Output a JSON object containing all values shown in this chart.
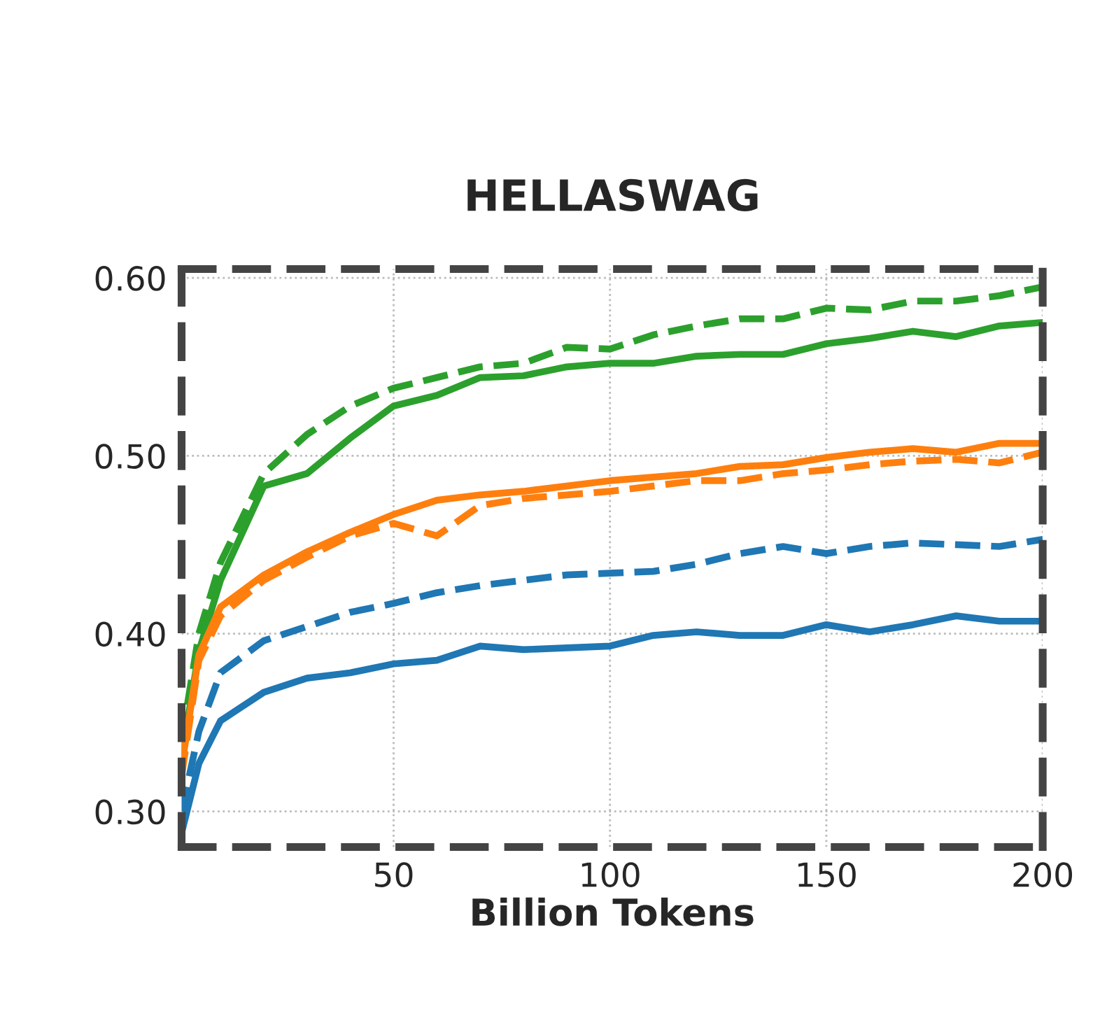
{
  "chart_data": {
    "type": "line",
    "title": "HELLASWAG",
    "xlabel": "Billion Tokens",
    "x": [
      1,
      5,
      10,
      20,
      30,
      40,
      50,
      60,
      70,
      80,
      90,
      100,
      110,
      120,
      130,
      140,
      150,
      160,
      170,
      180,
      190,
      200
    ],
    "series": [
      {
        "color": "#2ca02c",
        "line_style": "solid",
        "values": [
          0.33,
          0.39,
          0.43,
          0.483,
          0.49,
          0.51,
          0.528,
          0.534,
          0.544,
          0.545,
          0.55,
          0.552,
          0.552,
          0.556,
          0.557,
          0.557,
          0.563,
          0.566,
          0.57,
          0.567,
          0.573,
          0.575
        ]
      },
      {
        "color": "#2ca02c",
        "line_style": "dashed",
        "values": [
          0.34,
          0.4,
          0.44,
          0.49,
          0.512,
          0.528,
          0.538,
          0.544,
          0.55,
          0.552,
          0.561,
          0.56,
          0.568,
          0.573,
          0.577,
          0.577,
          0.583,
          0.582,
          0.587,
          0.587,
          0.59,
          0.595
        ]
      },
      {
        "color": "#ff7f0e",
        "line_style": "solid",
        "values": [
          0.325,
          0.388,
          0.415,
          0.433,
          0.446,
          0.457,
          0.467,
          0.475,
          0.478,
          0.48,
          0.483,
          0.486,
          0.488,
          0.49,
          0.494,
          0.495,
          0.499,
          0.502,
          0.504,
          0.502,
          0.507,
          0.507
        ]
      },
      {
        "color": "#ff7f0e",
        "line_style": "dashed",
        "values": [
          0.32,
          0.385,
          0.41,
          0.43,
          0.443,
          0.455,
          0.462,
          0.455,
          0.472,
          0.476,
          0.478,
          0.48,
          0.483,
          0.486,
          0.486,
          0.49,
          0.492,
          0.495,
          0.497,
          0.498,
          0.496,
          0.502
        ]
      },
      {
        "color": "#1f77b4",
        "line_style": "dashed",
        "values": [
          0.3,
          0.345,
          0.378,
          0.396,
          0.404,
          0.412,
          0.417,
          0.423,
          0.427,
          0.43,
          0.433,
          0.434,
          0.435,
          0.439,
          0.445,
          0.449,
          0.445,
          0.449,
          0.451,
          0.45,
          0.449,
          0.453
        ]
      },
      {
        "color": "#1f77b4",
        "line_style": "solid",
        "values": [
          0.288,
          0.327,
          0.351,
          0.367,
          0.375,
          0.378,
          0.383,
          0.385,
          0.393,
          0.391,
          0.392,
          0.393,
          0.399,
          0.401,
          0.399,
          0.399,
          0.405,
          0.401,
          0.405,
          0.41,
          0.407,
          0.407
        ]
      }
    ],
    "xlim": [
      1,
      200
    ],
    "xticks": [
      50,
      100,
      150,
      200
    ],
    "ylim": [
      0.28,
      0.605
    ],
    "yticks": [
      {
        "value": 0.3,
        "label": "0.30"
      },
      {
        "value": 0.4,
        "label": "0.40"
      },
      {
        "value": 0.5,
        "label": "0.50"
      },
      {
        "value": 0.6,
        "label": "0.60"
      }
    ],
    "grid": true,
    "marker": "none"
  }
}
